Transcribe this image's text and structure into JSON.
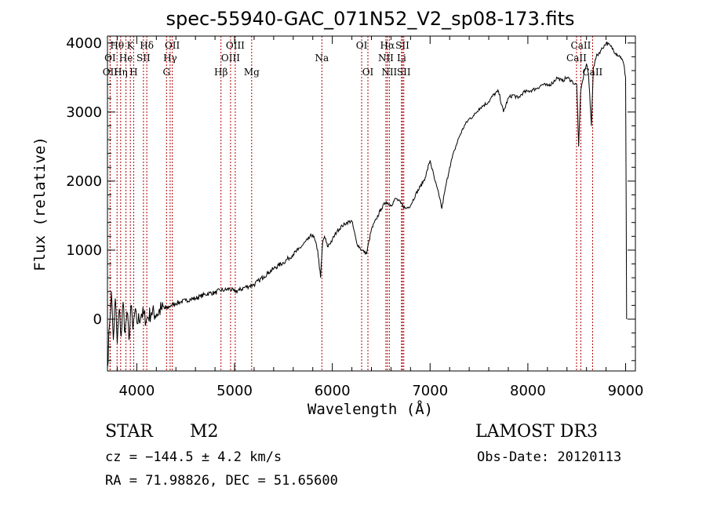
{
  "chart_data": {
    "type": "line",
    "title": "spec-55940-GAC_071N52_V2_sp08-173.fits",
    "xlabel": "Wavelength (Å)",
    "ylabel": "Flux (relative)",
    "xlim": [
      3700,
      9100
    ],
    "ylim": [
      -750,
      4100
    ],
    "xticks": [
      4000,
      5000,
      6000,
      7000,
      8000,
      9000
    ],
    "yticks": [
      0,
      1000,
      2000,
      3000,
      4000
    ],
    "series": [
      {
        "name": "flux",
        "x": [
          3700,
          3720,
          3740,
          3760,
          3780,
          3800,
          3820,
          3840,
          3860,
          3880,
          3900,
          3920,
          3940,
          3960,
          3980,
          4000,
          4050,
          4100,
          4150,
          4200,
          4250,
          4300,
          4350,
          4400,
          4450,
          4500,
          4550,
          4600,
          4650,
          4700,
          4750,
          4800,
          4850,
          4900,
          4950,
          5000,
          5050,
          5100,
          5150,
          5200,
          5250,
          5300,
          5350,
          5400,
          5450,
          5500,
          5550,
          5600,
          5650,
          5700,
          5750,
          5800,
          5850,
          5880,
          5900,
          5920,
          5950,
          6000,
          6050,
          6100,
          6150,
          6200,
          6250,
          6300,
          6350,
          6400,
          6450,
          6500,
          6550,
          6600,
          6650,
          6700,
          6750,
          6800,
          6850,
          6900,
          6950,
          7000,
          7050,
          7100,
          7120,
          7150,
          7200,
          7250,
          7300,
          7350,
          7400,
          7450,
          7500,
          7550,
          7600,
          7650,
          7700,
          7750,
          7800,
          7850,
          7900,
          7950,
          8000,
          8050,
          8100,
          8150,
          8200,
          8250,
          8300,
          8350,
          8400,
          8450,
          8480,
          8500,
          8520,
          8540,
          8560,
          8580,
          8600,
          8620,
          8650,
          8670,
          8700,
          8750,
          8800,
          8850,
          8900,
          8950,
          8980,
          9000,
          9010
        ],
        "y": [
          -700,
          -100,
          400,
          -300,
          300,
          -350,
          150,
          -250,
          250,
          -200,
          100,
          -300,
          200,
          -150,
          100,
          -50,
          80,
          0,
          100,
          70,
          150,
          150,
          200,
          230,
          250,
          270,
          290,
          300,
          330,
          360,
          380,
          380,
          420,
          420,
          440,
          400,
          420,
          460,
          480,
          500,
          560,
          620,
          680,
          730,
          780,
          820,
          880,
          940,
          1000,
          1080,
          1150,
          1230,
          1000,
          600,
          1100,
          1200,
          1050,
          1150,
          1280,
          1350,
          1400,
          1420,
          1100,
          1000,
          950,
          1300,
          1450,
          1600,
          1700,
          1650,
          1750,
          1680,
          1600,
          1650,
          1800,
          1920,
          2050,
          2300,
          2000,
          1750,
          1600,
          1850,
          2200,
          2450,
          2650,
          2800,
          2900,
          2950,
          3050,
          3100,
          3150,
          3250,
          3300,
          3000,
          3200,
          3250,
          3200,
          3280,
          3300,
          3320,
          3350,
          3400,
          3380,
          3420,
          3500,
          3450,
          3500,
          3450,
          3400,
          3400,
          2500,
          3300,
          3450,
          3600,
          3700,
          3550,
          2800,
          3650,
          3800,
          3900,
          4000,
          3950,
          3850,
          3800,
          3700,
          3500,
          0
        ]
      }
    ],
    "emission_lines": [
      {
        "label": "Hθ",
        "x": 3798,
        "row": 1
      },
      {
        "label": "K",
        "x": 3934,
        "row": 1
      },
      {
        "label": "Hδ",
        "x": 4102,
        "row": 1
      },
      {
        "label": "OII",
        "x": 4363,
        "row": 1
      },
      {
        "label": "OIII",
        "x": 5007,
        "row": 1
      },
      {
        "label": "OI",
        "x": 6300,
        "row": 1
      },
      {
        "label": "Hα",
        "x": 6563,
        "row": 1
      },
      {
        "label": "SII",
        "x": 6717,
        "row": 1
      },
      {
        "label": "CaII",
        "x": 8542,
        "row": 1
      },
      {
        "label": "OI",
        "x": 3727,
        "row": 2
      },
      {
        "label": "He",
        "x": 3889,
        "row": 2
      },
      {
        "label": "SII",
        "x": 4068,
        "row": 2
      },
      {
        "label": "Hγ",
        "x": 4341,
        "row": 2
      },
      {
        "label": "OIII",
        "x": 4959,
        "row": 2
      },
      {
        "label": "Na",
        "x": 5893,
        "row": 2
      },
      {
        "label": "NII",
        "x": 6548,
        "row": 2
      },
      {
        "label": "Li",
        "x": 6708,
        "row": 2
      },
      {
        "label": "CaII",
        "x": 8498,
        "row": 2
      },
      {
        "label": "OII",
        "x": 3727,
        "row": 3
      },
      {
        "label": "Hη",
        "x": 3835,
        "row": 3
      },
      {
        "label": "H",
        "x": 3968,
        "row": 3
      },
      {
        "label": "G",
        "x": 4304,
        "row": 3
      },
      {
        "label": "Hβ",
        "x": 4861,
        "row": 3
      },
      {
        "label": "Mg",
        "x": 5175,
        "row": 3
      },
      {
        "label": "OI",
        "x": 6364,
        "row": 3
      },
      {
        "label": "NII",
        "x": 6583,
        "row": 3
      },
      {
        "label": "SII",
        "x": 6731,
        "row": 3
      },
      {
        "label": "CaII",
        "x": 8662,
        "row": 3
      }
    ]
  },
  "info": {
    "class": "STAR",
    "subclass": "M2",
    "survey": "LAMOST DR3",
    "cz": "cz = −144.5 ± 4.2 km/s",
    "obs_date": "Obs-Date: 20120113",
    "radec": "RA =  71.98826, DEC =  51.65600"
  }
}
